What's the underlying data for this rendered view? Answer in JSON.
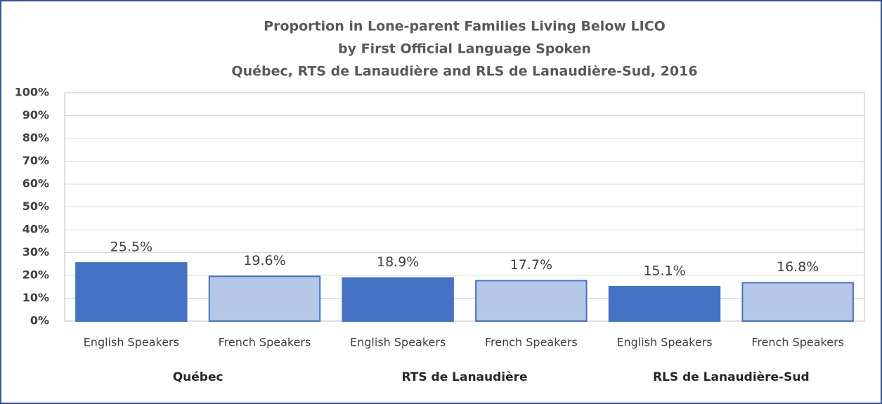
{
  "chart_data": {
    "type": "bar",
    "title": [
      "Proportion in Lone-parent Families Living Below LICO",
      "by First Official Language Spoken",
      "Québec, RTS de Lanaudière and RLS de Lanaudière-Sud, 2016"
    ],
    "categories": [
      "English Speakers",
      "French Speakers",
      "English Speakers",
      "French Speakers",
      "English Speakers",
      "French Speakers"
    ],
    "groups": [
      "Québec",
      "RTS de Lanaudière",
      "RLS de Lanaudière-Sud"
    ],
    "values": [
      25.5,
      19.6,
      18.9,
      17.7,
      15.1,
      16.8
    ],
    "value_labels": [
      "25.5%",
      "19.6%",
      "18.9%",
      "17.7%",
      "15.1%",
      "16.8%"
    ],
    "colors": [
      "#4472c4",
      "#b4c7e7",
      "#4472c4",
      "#b4c7e7",
      "#4472c4",
      "#b4c7e7"
    ],
    "edgecolor": "#4472c4",
    "ylim": [
      0,
      100
    ],
    "yticks": [
      {
        "value": 0,
        "label": "0%"
      },
      {
        "value": 10,
        "label": "10%"
      },
      {
        "value": 20,
        "label": "20%"
      },
      {
        "value": 30,
        "label": "30%"
      },
      {
        "value": 40,
        "label": "40%"
      },
      {
        "value": 50,
        "label": "50%"
      },
      {
        "value": 60,
        "label": "60%"
      },
      {
        "value": 70,
        "label": "70%"
      },
      {
        "value": 80,
        "label": "80%"
      },
      {
        "value": 90,
        "label": "90%"
      },
      {
        "value": 100,
        "label": "100%"
      }
    ],
    "grid": true
  }
}
